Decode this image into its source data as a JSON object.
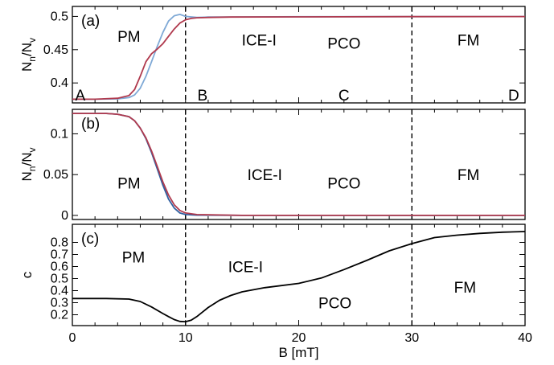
{
  "chart_data": [
    {
      "panel": "(a)",
      "type": "line",
      "ylabel": {
        "main": "N",
        "sub1": "n",
        "slash": "/N",
        "sub2": "v"
      },
      "xlim": [
        0,
        40
      ],
      "ylim": [
        0.37,
        0.515
      ],
      "yticks": [
        0.4,
        0.45,
        0.5
      ],
      "ytick_labels": [
        "0.4",
        "0.45",
        "0.5"
      ],
      "dashed_x": [
        10,
        30
      ],
      "point_labels": [
        {
          "text": "A",
          "x": 0.7
        },
        {
          "text": "B",
          "x": 11.5
        },
        {
          "text": "C",
          "x": 24
        },
        {
          "text": "D",
          "x": 39
        }
      ],
      "regions": [
        {
          "text": "PM",
          "x": 5,
          "y": 0.47
        },
        {
          "text": "ICE-I",
          "x": 16.5,
          "y": 0.465
        },
        {
          "text": "PCO",
          "x": 24,
          "y": 0.46
        },
        {
          "text": "FM",
          "x": 35,
          "y": 0.465
        }
      ],
      "colors": {
        "series1": "#7fa9d6",
        "series2": "#b03a4e"
      },
      "series": [
        {
          "x": [
            0,
            2,
            4,
            5,
            5.5,
            6,
            6.5,
            7,
            7.5,
            8,
            8.5,
            9,
            9.5,
            10,
            11,
            12,
            14,
            20,
            30,
            40
          ],
          "values": [
            0.3755,
            0.3755,
            0.376,
            0.378,
            0.382,
            0.392,
            0.41,
            0.432,
            0.455,
            0.476,
            0.493,
            0.501,
            0.503,
            0.5,
            0.4985,
            0.499,
            0.4992,
            0.4995,
            0.4997,
            0.4998
          ]
        },
        {
          "x": [
            0,
            2,
            4,
            5,
            5.5,
            6,
            6.5,
            7,
            7.5,
            8,
            8.5,
            9,
            9.5,
            10,
            10.5,
            11,
            12,
            14,
            20,
            30,
            40
          ],
          "values": [
            0.3755,
            0.3755,
            0.377,
            0.381,
            0.39,
            0.41,
            0.432,
            0.444,
            0.451,
            0.459,
            0.47,
            0.481,
            0.49,
            0.495,
            0.497,
            0.498,
            0.4985,
            0.499,
            0.4993,
            0.4996,
            0.4998
          ]
        }
      ]
    },
    {
      "panel": "(b)",
      "type": "line",
      "ylabel": {
        "main": "N",
        "sub1": "n",
        "slash": "/N",
        "sub2": "v"
      },
      "xlim": [
        0,
        40
      ],
      "ylim": [
        -0.005,
        0.13
      ],
      "yticks": [
        0,
        0.05,
        0.1
      ],
      "ytick_labels": [
        "0",
        "0.05",
        "0.1"
      ],
      "dashed_x": [
        10,
        30
      ],
      "regions": [
        {
          "text": "PM",
          "x": 5,
          "y": 0.04
        },
        {
          "text": "ICE-I",
          "x": 17,
          "y": 0.05
        },
        {
          "text": "PCO",
          "x": 24,
          "y": 0.04
        },
        {
          "text": "FM",
          "x": 35,
          "y": 0.05
        }
      ],
      "colors": {
        "series1": "#2f5fa0",
        "series2": "#b03a4e"
      },
      "series": [
        {
          "x": [
            0,
            3,
            4,
            5,
            5.5,
            6,
            6.5,
            7,
            7.5,
            8,
            8.5,
            9,
            9.5,
            10,
            11,
            15,
            40
          ],
          "values": [
            0.125,
            0.125,
            0.124,
            0.121,
            0.116,
            0.107,
            0.094,
            0.077,
            0.057,
            0.037,
            0.02,
            0.009,
            0.003,
            0.001,
            0.0003,
            0,
            0
          ]
        },
        {
          "x": [
            0,
            3,
            4,
            5,
            5.5,
            6,
            6.5,
            7,
            7.5,
            8,
            8.5,
            9,
            9.5,
            10,
            11,
            15,
            40
          ],
          "values": [
            0.125,
            0.125,
            0.124,
            0.121,
            0.116,
            0.107,
            0.095,
            0.079,
            0.06,
            0.041,
            0.025,
            0.013,
            0.006,
            0.003,
            0.001,
            0,
            0
          ]
        }
      ]
    },
    {
      "panel": "(c)",
      "type": "line",
      "ylabel": {
        "main": "c"
      },
      "xlabel": "B [mT]",
      "xlim": [
        0,
        40
      ],
      "xticks": [
        0,
        10,
        20,
        30,
        40
      ],
      "xtick_labels": [
        "0",
        "10",
        "20",
        "30",
        "40"
      ],
      "ylim": [
        0.11,
        0.95
      ],
      "yticks": [
        0.2,
        0.3,
        0.4,
        0.5,
        0.6,
        0.7,
        0.8
      ],
      "ytick_labels": [
        "0.2",
        "0.3",
        "0.4",
        "0.5",
        "0.6",
        "0.7",
        "0.8"
      ],
      "dashed_x": [
        10,
        30
      ],
      "regions": [
        {
          "text": "PM",
          "x": 5.4,
          "y": 0.68
        },
        {
          "text": "ICE-I",
          "x": 15.3,
          "y": 0.6
        },
        {
          "text": "PCO",
          "x": 23.2,
          "y": 0.3
        },
        {
          "text": "FM",
          "x": 34.7,
          "y": 0.43
        }
      ],
      "colors": {
        "series1": "#000000"
      },
      "series": [
        {
          "x": [
            0,
            3,
            5,
            6,
            7,
            8,
            8.5,
            9,
            9.5,
            10,
            10.5,
            11,
            12,
            13,
            14,
            15,
            17,
            20,
            22,
            24,
            26,
            28,
            30,
            32,
            34,
            36,
            38,
            40
          ],
          "values": [
            0.335,
            0.335,
            0.33,
            0.31,
            0.265,
            0.21,
            0.185,
            0.16,
            0.145,
            0.143,
            0.155,
            0.185,
            0.26,
            0.32,
            0.36,
            0.39,
            0.425,
            0.46,
            0.505,
            0.575,
            0.65,
            0.73,
            0.79,
            0.84,
            0.86,
            0.875,
            0.885,
            0.89
          ]
        }
      ]
    }
  ]
}
